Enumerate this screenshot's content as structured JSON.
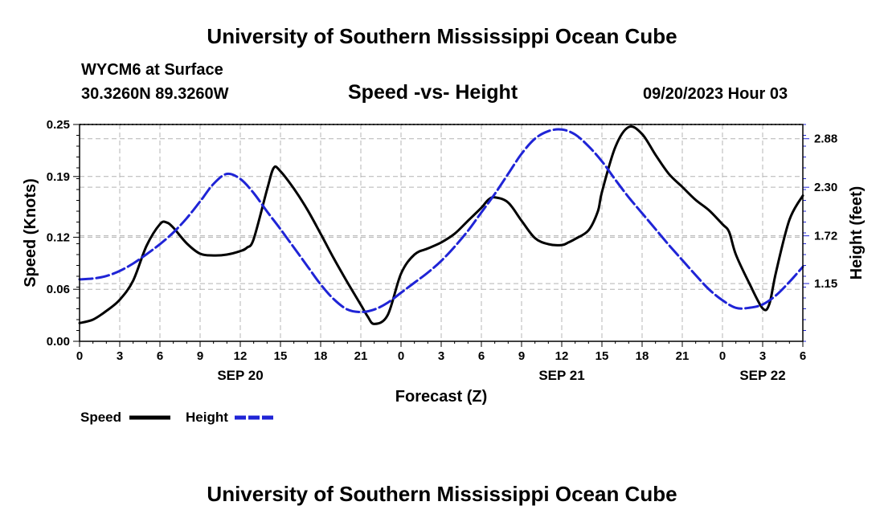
{
  "page": {
    "title_top": "University of Southern Mississippi Ocean Cube",
    "title_bottom": "University of Southern Mississippi Ocean Cube",
    "station": "WYCM6 at Surface",
    "coords": "30.3260N  89.3260W",
    "subtitle": "Speed -vs- Height",
    "datetime": "09/20/2023 Hour 03"
  },
  "colors": {
    "speed": "#000000",
    "height": "#1f24d6",
    "grid": "#b4b4b4"
  },
  "chart_data": {
    "type": "line",
    "title": "Speed -vs- Height",
    "xlabel": "Forecast (Z)",
    "ylabel": "Speed (Knots)",
    "y2label": "Height (feet)",
    "xlim": [
      0,
      54
    ],
    "ylim": [
      0,
      0.25
    ],
    "y2lim": [
      0.46,
      3.05
    ],
    "x_ticks": [
      0,
      3,
      6,
      9,
      12,
      15,
      18,
      21,
      24,
      27,
      30,
      33,
      36,
      39,
      42,
      45,
      48,
      51,
      54
    ],
    "x_tick_labels": [
      "0",
      "3",
      "6",
      "9",
      "12",
      "15",
      "18",
      "21",
      "0",
      "3",
      "6",
      "9",
      "12",
      "15",
      "18",
      "21",
      "0",
      "3",
      "6"
    ],
    "date_labels": [
      {
        "x": 12,
        "text": "SEP 20"
      },
      {
        "x": 36,
        "text": "SEP 21"
      },
      {
        "x": 51,
        "text": "SEP 22"
      }
    ],
    "y_ticks": [
      0.0,
      0.06,
      0.12,
      0.19,
      0.25
    ],
    "y_tick_labels": [
      "0.00",
      "0.06",
      "0.12",
      "0.19",
      "0.25"
    ],
    "y2_ticks": [
      1.15,
      1.72,
      2.3,
      2.88
    ],
    "y2_tick_labels": [
      "1.15",
      "1.72",
      "2.30",
      "2.88"
    ],
    "grid": true,
    "legend": [
      {
        "label": "Speed",
        "style": "solid"
      },
      {
        "label": "Height",
        "style": "dashed"
      }
    ],
    "series": [
      {
        "name": "Speed",
        "axis": "left",
        "style": "solid",
        "x": [
          0,
          1,
          2,
          3,
          4,
          5,
          6,
          6.5,
          7,
          8,
          9,
          10,
          11,
          12,
          12.5,
          13,
          14,
          14.5,
          15,
          16,
          17,
          18,
          19,
          20,
          21,
          21.5,
          22,
          23,
          24,
          25,
          26,
          27,
          28,
          29,
          30,
          30.5,
          31,
          32,
          33,
          34,
          35,
          36,
          36.5,
          37,
          38,
          38.7,
          39,
          40,
          41,
          42,
          43,
          44,
          45,
          46,
          47,
          48,
          48.5,
          49,
          50,
          51,
          51.5,
          52,
          53,
          54
        ],
        "values": [
          0.021,
          0.025,
          0.035,
          0.048,
          0.07,
          0.11,
          0.135,
          0.137,
          0.131,
          0.113,
          0.101,
          0.099,
          0.1,
          0.104,
          0.108,
          0.118,
          0.175,
          0.2,
          0.196,
          0.176,
          0.152,
          0.124,
          0.095,
          0.068,
          0.042,
          0.029,
          0.02,
          0.03,
          0.078,
          0.1,
          0.107,
          0.114,
          0.124,
          0.139,
          0.154,
          0.163,
          0.166,
          0.16,
          0.139,
          0.119,
          0.112,
          0.111,
          0.114,
          0.118,
          0.128,
          0.15,
          0.172,
          0.224,
          0.247,
          0.239,
          0.215,
          0.193,
          0.178,
          0.163,
          0.151,
          0.135,
          0.126,
          0.1,
          0.067,
          0.038,
          0.043,
          0.08,
          0.14,
          0.168
        ]
      },
      {
        "name": "Height",
        "axis": "right",
        "style": "dashed",
        "x": [
          0,
          1,
          2,
          3,
          4,
          5,
          6,
          7,
          8,
          9,
          10,
          11,
          12,
          13,
          14,
          15,
          16,
          17,
          18,
          19,
          20,
          21,
          22,
          23,
          24,
          25,
          26,
          27,
          28,
          29,
          30,
          31,
          32,
          33,
          34,
          35,
          36,
          37,
          38,
          39,
          40,
          41,
          42,
          43,
          44,
          45,
          46,
          47,
          48,
          49,
          50,
          51,
          52,
          53,
          54
        ],
        "values": [
          1.2,
          1.21,
          1.24,
          1.3,
          1.39,
          1.5,
          1.62,
          1.76,
          1.93,
          2.13,
          2.34,
          2.46,
          2.4,
          2.23,
          2.01,
          1.8,
          1.58,
          1.36,
          1.14,
          0.96,
          0.84,
          0.81,
          0.84,
          0.92,
          1.04,
          1.16,
          1.28,
          1.42,
          1.59,
          1.78,
          2.0,
          2.22,
          2.46,
          2.7,
          2.88,
          2.97,
          2.99,
          2.93,
          2.79,
          2.61,
          2.39,
          2.18,
          1.99,
          1.8,
          1.61,
          1.43,
          1.25,
          1.08,
          0.95,
          0.86,
          0.86,
          0.9,
          1.01,
          1.17,
          1.35
        ]
      }
    ]
  }
}
